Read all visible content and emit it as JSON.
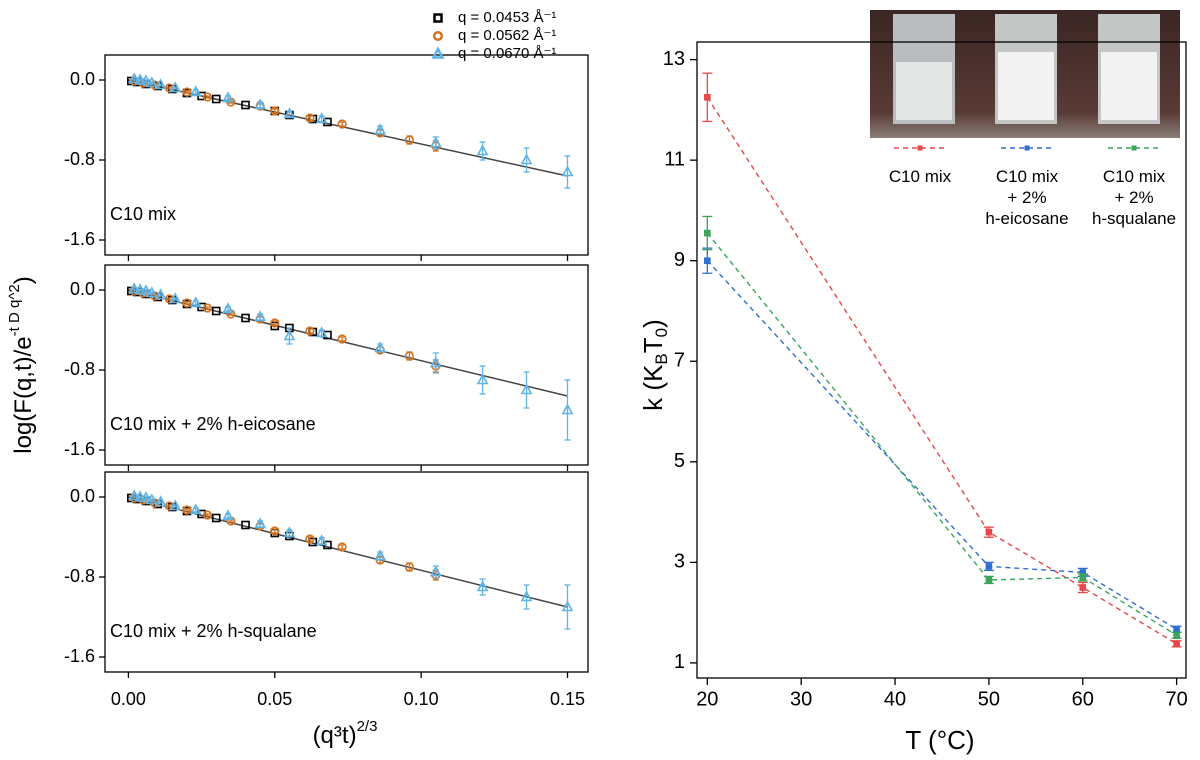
{
  "chart_data": [
    {
      "type": "scatter",
      "label": "C10 mix",
      "xlim": [
        -0.008,
        0.157
      ],
      "ylim": [
        -1.75,
        0.25
      ],
      "yticks": [
        {
          "value": 0,
          "label": "0.0"
        },
        -0.8,
        -1.6
      ],
      "series": [
        {
          "name": "q = 0.0453 Å⁻¹",
          "color": "#000000",
          "marker": "square",
          "x": [
            0.001,
            0.003,
            0.006,
            0.01,
            0.015,
            0.02,
            0.025,
            0.03,
            0.04,
            0.05,
            0.055,
            0.063,
            0.068
          ],
          "values": [
            -0.01,
            -0.02,
            -0.04,
            -0.06,
            -0.09,
            -0.13,
            -0.16,
            -0.19,
            -0.25,
            -0.31,
            -0.35,
            -0.39,
            -0.42
          ]
        },
        {
          "name": "q = 0.0562 Å⁻¹",
          "color": "#d4731f",
          "marker": "circle",
          "x": [
            0.002,
            0.005,
            0.009,
            0.014,
            0.02,
            0.027,
            0.035,
            0.045,
            0.05,
            0.062,
            0.073,
            0.086,
            0.096,
            0.105
          ],
          "values": [
            -0.01,
            -0.03,
            -0.05,
            -0.08,
            -0.12,
            -0.17,
            -0.22,
            -0.26,
            -0.31,
            -0.38,
            -0.44,
            -0.53,
            -0.6,
            -0.66
          ],
          "errors": [
            0.01,
            0.01,
            0.01,
            0.01,
            0.01,
            0.01,
            0.01,
            0.02,
            0.02,
            0.02,
            0.02,
            0.03,
            0.04,
            0.05
          ]
        },
        {
          "name": "q = 0.0670 Å⁻¹",
          "color": "#5fb3e6",
          "marker": "triangle",
          "x": [
            0.002,
            0.004,
            0.006,
            0.008,
            0.011,
            0.016,
            0.023,
            0.034,
            0.045,
            0.055,
            0.066,
            0.086,
            0.105,
            0.121,
            0.136,
            0.15
          ],
          "values": [
            0.01,
            0,
            -0.01,
            -0.03,
            -0.05,
            -0.08,
            -0.12,
            -0.18,
            -0.25,
            -0.34,
            -0.39,
            -0.5,
            -0.63,
            -0.71,
            -0.8,
            -0.92
          ],
          "errors": [
            0.01,
            0.01,
            0.01,
            0.01,
            0.01,
            0.01,
            0.02,
            0.02,
            0.03,
            0.03,
            0.03,
            0.04,
            0.06,
            0.09,
            0.12,
            0.16
          ]
        }
      ],
      "fit": {
        "color": "#444444",
        "x": [
          0,
          0.15
        ],
        "values": [
          0,
          -0.96
        ]
      }
    },
    {
      "type": "scatter",
      "label": "C10 mix + 2% h-eicosane",
      "xlim": [
        -0.008,
        0.157
      ],
      "ylim": [
        -1.75,
        0.25
      ],
      "yticks": [
        {
          "value": 0,
          "label": "0.0"
        },
        -0.8,
        -1.6
      ],
      "ylabel": [
        "log(F(q,t)/e",
        "-t D q^2",
        ")"
      ],
      "series": [
        {
          "color": "#000000",
          "marker": "square",
          "x": [
            0.001,
            0.003,
            0.006,
            0.01,
            0.015,
            0.02,
            0.025,
            0.03,
            0.04,
            0.05,
            0.055,
            0.063,
            0.068
          ],
          "values": [
            -0.01,
            -0.02,
            -0.04,
            -0.07,
            -0.1,
            -0.14,
            -0.17,
            -0.21,
            -0.28,
            -0.36,
            -0.38,
            -0.42,
            -0.45
          ]
        },
        {
          "color": "#d4731f",
          "marker": "circle",
          "x": [
            0.002,
            0.005,
            0.009,
            0.014,
            0.02,
            0.027,
            0.035,
            0.045,
            0.05,
            0.062,
            0.073,
            0.086,
            0.096,
            0.105
          ],
          "values": [
            -0.01,
            -0.03,
            -0.06,
            -0.09,
            -0.13,
            -0.18,
            -0.24,
            -0.29,
            -0.33,
            -0.41,
            -0.49,
            -0.6,
            -0.66,
            -0.76
          ],
          "errors": [
            0.01,
            0.01,
            0.01,
            0.01,
            0.01,
            0.01,
            0.01,
            0.02,
            0.02,
            0.02,
            0.02,
            0.03,
            0.04,
            0.06
          ]
        },
        {
          "color": "#5fb3e6",
          "marker": "triangle",
          "x": [
            0.002,
            0.004,
            0.006,
            0.008,
            0.011,
            0.016,
            0.023,
            0.034,
            0.045,
            0.055,
            0.066,
            0.086,
            0.105,
            0.121,
            0.136,
            0.15
          ],
          "values": [
            0.01,
            0,
            -0.01,
            -0.03,
            -0.05,
            -0.09,
            -0.13,
            -0.19,
            -0.27,
            -0.46,
            -0.43,
            -0.58,
            -0.73,
            -0.9,
            -1.0,
            -1.2
          ],
          "errors": [
            0.01,
            0.01,
            0.01,
            0.01,
            0.01,
            0.01,
            0.02,
            0.02,
            0.03,
            0.08,
            0.03,
            0.04,
            0.1,
            0.14,
            0.18,
            0.3
          ]
        }
      ],
      "fit": {
        "color": "#444444",
        "x": [
          0,
          0.15
        ],
        "values": [
          0,
          -1.06
        ]
      }
    },
    {
      "type": "scatter",
      "label": "C10 mix + 2% h-squalane",
      "xlim": [
        -0.008,
        0.157
      ],
      "ylim": [
        -1.75,
        0.25
      ],
      "yticks": [
        {
          "value": 0,
          "label": "0.0"
        },
        -0.8,
        -1.6
      ],
      "xticks": [
        {
          "value": 0,
          "label": "0.00"
        },
        0.05,
        {
          "value": 0.1,
          "label": "0.10"
        },
        0.15
      ],
      "xlabel": [
        "(q³t)",
        "2/3"
      ],
      "series": [
        {
          "color": "#000000",
          "marker": "square",
          "x": [
            0.001,
            0.003,
            0.006,
            0.01,
            0.015,
            0.02,
            0.025,
            0.03,
            0.04,
            0.05,
            0.055,
            0.063,
            0.068
          ],
          "values": [
            -0.01,
            -0.02,
            -0.04,
            -0.07,
            -0.1,
            -0.14,
            -0.17,
            -0.21,
            -0.28,
            -0.36,
            -0.39,
            -0.45,
            -0.48
          ]
        },
        {
          "color": "#d4731f",
          "marker": "circle",
          "x": [
            0.002,
            0.005,
            0.009,
            0.014,
            0.02,
            0.027,
            0.035,
            0.045,
            0.05,
            0.062,
            0.073,
            0.086,
            0.096,
            0.105
          ],
          "values": [
            -0.01,
            -0.03,
            -0.06,
            -0.09,
            -0.13,
            -0.18,
            -0.24,
            -0.29,
            -0.34,
            -0.42,
            -0.5,
            -0.63,
            -0.7,
            -0.78
          ],
          "errors": [
            0.01,
            0.01,
            0.01,
            0.01,
            0.01,
            0.01,
            0.01,
            0.02,
            0.02,
            0.02,
            0.02,
            0.03,
            0.04,
            0.05
          ]
        },
        {
          "color": "#5fb3e6",
          "marker": "triangle",
          "x": [
            0.002,
            0.004,
            0.006,
            0.008,
            0.011,
            0.016,
            0.023,
            0.034,
            0.045,
            0.055,
            0.066,
            0.086,
            0.105,
            0.121,
            0.136,
            0.15
          ],
          "values": [
            0.01,
            0,
            -0.01,
            -0.03,
            -0.05,
            -0.09,
            -0.13,
            -0.19,
            -0.27,
            -0.36,
            -0.44,
            -0.59,
            -0.75,
            -0.9,
            -1.0,
            -1.1
          ],
          "errors": [
            0.01,
            0.01,
            0.01,
            0.01,
            0.01,
            0.01,
            0.02,
            0.02,
            0.03,
            0.03,
            0.03,
            0.04,
            0.06,
            0.08,
            0.12,
            0.22
          ]
        }
      ],
      "fit": {
        "color": "#444444",
        "x": [
          0,
          0.15
        ],
        "values": [
          0,
          -1.1
        ]
      }
    },
    {
      "type": "line",
      "xlim": [
        18.9,
        71
      ],
      "ylim": [
        0.7,
        13.35
      ],
      "xticks": [
        20,
        30,
        40,
        50,
        60,
        70
      ],
      "yticks": [
        1,
        3,
        5,
        7,
        9,
        11,
        13
      ],
      "xlabel": "T (°C)",
      "ylabel": [
        "k (K",
        "B",
        "T",
        "0",
        ")"
      ],
      "series": [
        {
          "name": "C10 mix",
          "color": "#e8474a",
          "x": [
            20,
            50,
            60,
            70
          ],
          "values": [
            12.25,
            3.6,
            2.5,
            1.38
          ],
          "errors": [
            0.48,
            0.1,
            0.1,
            0.06
          ]
        },
        {
          "name": "C10 mix\n+ 2%\nh-eicosane",
          "color": "#2f6fd0",
          "x": [
            20,
            50,
            60,
            70
          ],
          "values": [
            9.0,
            2.92,
            2.8,
            1.67
          ],
          "errors": [
            0.25,
            0.08,
            0.08,
            0.06
          ]
        },
        {
          "name": "C10 mix\n+ 2%\nh-squalane",
          "color": "#3aa55a",
          "x": [
            20,
            50,
            60,
            70
          ],
          "values": [
            9.55,
            2.65,
            2.7,
            1.55
          ],
          "errors": [
            0.33,
            0.07,
            0.07,
            0.06
          ]
        }
      ]
    }
  ]
}
